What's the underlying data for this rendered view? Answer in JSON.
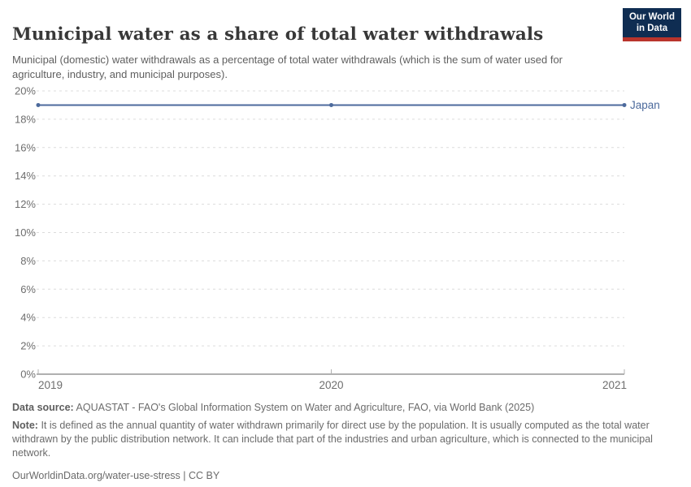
{
  "header": {
    "title": "Municipal water as a share of total water withdrawals",
    "subtitle": "Municipal (domestic) water withdrawals as a percentage of total water withdrawals (which is the sum of water used for agriculture, industry, and municipal purposes).",
    "logo": {
      "line1": "Our World",
      "line2": "in Data"
    }
  },
  "chart_data": {
    "type": "line",
    "title": "Municipal water as a share of total water withdrawals",
    "x": [
      2019,
      2020,
      2021
    ],
    "series": [
      {
        "name": "Japan",
        "color": "#4c6a9c",
        "values": [
          19,
          19,
          19
        ]
      }
    ],
    "xlim": [
      2019,
      2021
    ],
    "ylim": [
      0,
      20
    ],
    "x_ticks": [
      2019,
      2020,
      2021
    ],
    "y_ticks": [
      0,
      2,
      4,
      6,
      8,
      10,
      12,
      14,
      16,
      18,
      20
    ],
    "y_tick_suffix": "%",
    "xlabel": "",
    "ylabel": "",
    "grid": "horizontal-dashed",
    "legend": "end-of-line-label",
    "markers": true
  },
  "footer": {
    "data_source_label": "Data source:",
    "data_source": "AQUASTAT - FAO's Global Information System on Water and Agriculture, FAO, via World Bank (2025)",
    "note_label": "Note:",
    "note": "It is defined as the annual quantity of water withdrawn primarily for direct use by the population. It is usually computed as the total water withdrawn by the public distribution network. It can include that part of the industries and urban agriculture, which is connected to the municipal network.",
    "url": "OurWorldinData.org/water-use-stress",
    "license": "| CC BY"
  },
  "colors": {
    "accent": "#4c6a9c",
    "grid": "#dcdcdc",
    "axis": "#b0b0b0",
    "tick_text": "#6e6e6e",
    "title_text": "#383838",
    "logo_bg": "#0f2d52",
    "logo_stripe": "#b9342c"
  }
}
